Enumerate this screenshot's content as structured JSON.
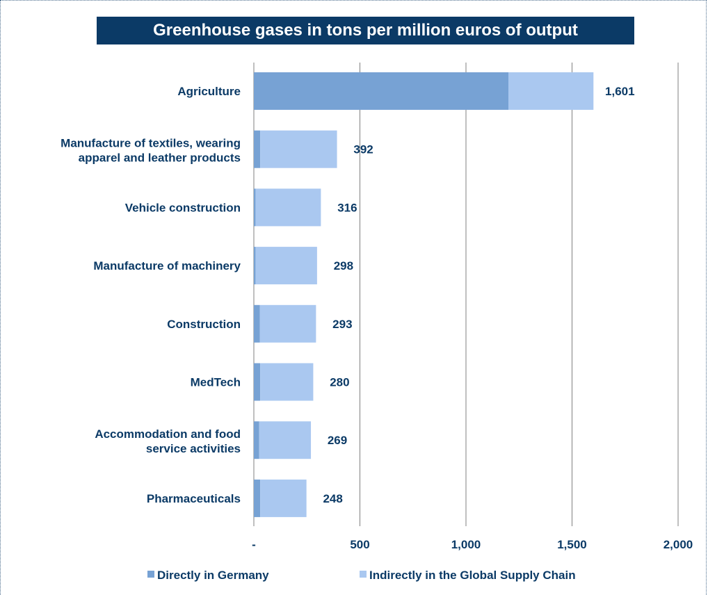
{
  "chart_data": {
    "type": "bar",
    "orientation": "horizontal",
    "stacked": true,
    "title": "Greenhouse gases in tons per million euros of output",
    "categories": [
      "Agriculture",
      "Manufacture of textiles, wearing apparel and leather products",
      "Vehicle construction",
      "Manufacture of machinery",
      "Construction",
      "MedTech",
      "Accommodation and food service activities",
      "Pharmaceuticals"
    ],
    "series": [
      {
        "name": "Directly in Germany",
        "values": [
          1200,
          30,
          8,
          8,
          28,
          30,
          25,
          30
        ]
      },
      {
        "name": "Indirectly in the Global Supply Chain",
        "values": [
          401,
          362,
          308,
          290,
          265,
          250,
          244,
          218
        ]
      }
    ],
    "totals": [
      1601,
      392,
      316,
      298,
      293,
      280,
      269,
      248
    ],
    "total_labels": [
      "1,601",
      "392",
      "316",
      "298",
      "293",
      "280",
      "269",
      "248"
    ],
    "xlim": [
      0,
      2000
    ],
    "xticks": [
      0,
      500,
      1000,
      1500,
      2000
    ],
    "xtick_labels": [
      "-",
      "500",
      "1,000",
      "1,500",
      "2,000"
    ],
    "grid": "vertical",
    "legend_position": "bottom",
    "colors": {
      "direct": "#77a2d4",
      "indirect": "#aac8f0",
      "text": "#0b3a66",
      "grid": "#7f7f7f",
      "title_bg": "#0b3a66"
    }
  }
}
